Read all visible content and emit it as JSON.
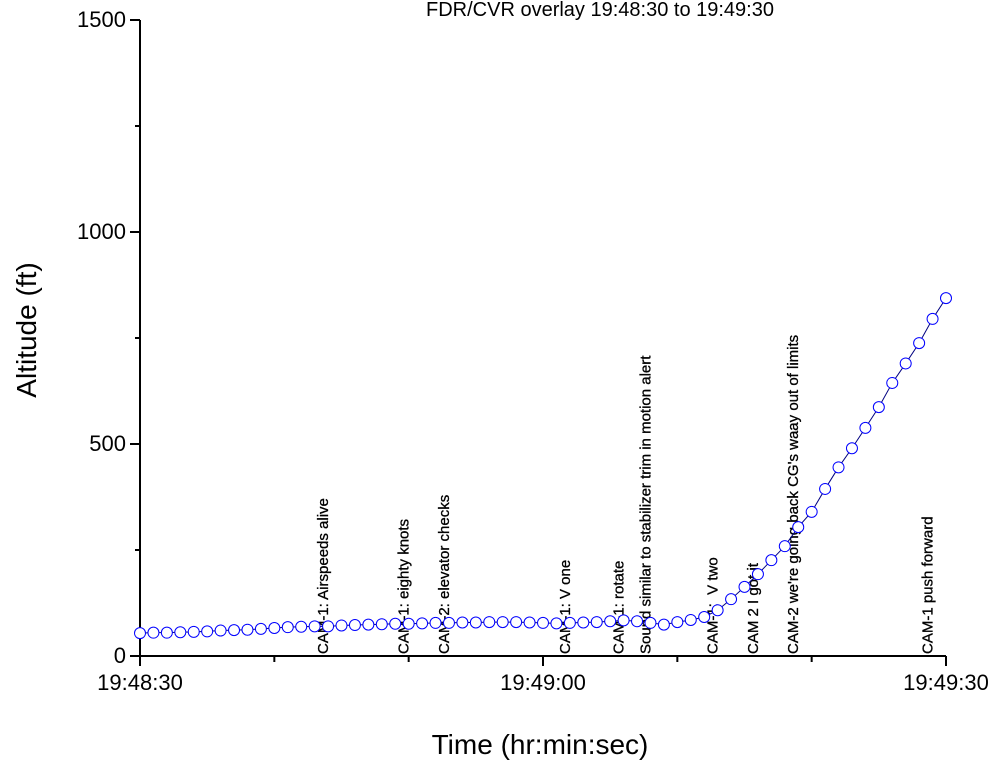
{
  "chart_data": {
    "type": "scatter",
    "title": "FDR/CVR overlay 19:48:30 to 19:49:30",
    "xlabel": "Time (hr:min:sec)",
    "ylabel": "Altitude (ft)",
    "xlim": [
      "19:48:30",
      "19:49:30"
    ],
    "xticks": [
      "19:48:30",
      "19:49:00",
      "19:49:30"
    ],
    "xminorticks": [
      "19:48:40",
      "19:48:50",
      "19:49:10",
      "19:49:20"
    ],
    "ylim": [
      0,
      1500
    ],
    "yticks": [
      0,
      500,
      1000,
      1500
    ],
    "yminorticks": [
      250,
      750,
      1250
    ],
    "x": [
      "19:48:30",
      "19:48:31",
      "19:48:32",
      "19:48:33",
      "19:48:34",
      "19:48:35",
      "19:48:36",
      "19:48:37",
      "19:48:38",
      "19:48:39",
      "19:48:40",
      "19:48:41",
      "19:48:42",
      "19:48:43",
      "19:48:44",
      "19:48:45",
      "19:48:46",
      "19:48:47",
      "19:48:48",
      "19:48:49",
      "19:48:50",
      "19:48:51",
      "19:48:52",
      "19:48:53",
      "19:48:54",
      "19:48:55",
      "19:48:56",
      "19:48:57",
      "19:48:58",
      "19:48:59",
      "19:49:00",
      "19:49:01",
      "19:49:02",
      "19:49:03",
      "19:49:04",
      "19:49:05",
      "19:49:06",
      "19:49:07",
      "19:49:08",
      "19:49:09",
      "19:49:10",
      "19:49:11",
      "19:49:12",
      "19:49:13",
      "19:49:14",
      "19:49:15",
      "19:49:16",
      "19:49:17",
      "19:49:18",
      "19:49:19",
      "19:49:20",
      "19:49:21",
      "19:49:22",
      "19:49:23",
      "19:49:24",
      "19:49:25",
      "19:49:26",
      "19:49:27",
      "19:49:28",
      "19:49:29",
      "19:49:30"
    ],
    "series": [
      {
        "name": "Altitude",
        "color": "#0000ff",
        "values": [
          54,
          55,
          55,
          56,
          57,
          58,
          60,
          61,
          62,
          64,
          66,
          68,
          69,
          70,
          70,
          72,
          73,
          74,
          75,
          76,
          76,
          77,
          78,
          78,
          79,
          79,
          80,
          80,
          80,
          79,
          78,
          77,
          78,
          79,
          80,
          82,
          84,
          82,
          78,
          74,
          80,
          85,
          92,
          108,
          134,
          163,
          193,
          226,
          259,
          304,
          340,
          394,
          445,
          490,
          538,
          587,
          644,
          690,
          738,
          795,
          844
        ]
      }
    ],
    "annotations": [
      {
        "x": "19:48:44",
        "text": "CAM-1: Airspeeds alive"
      },
      {
        "x": "19:48:50",
        "text": "CAM-1: eighty knots"
      },
      {
        "x": "19:48:53",
        "text": "CAM-2: elevator checks"
      },
      {
        "x": "19:49:02",
        "text": "CAM-1: V one"
      },
      {
        "x": "19:49:06",
        "text": "CAM-1: rotate"
      },
      {
        "x": "19:49:08",
        "text": "Sound similar to stabilizer trim in motion alert"
      },
      {
        "x": "19:49:13",
        "text": "CAM-1:  V two"
      },
      {
        "x": "19:49:16",
        "text": "CAM 2 I got it"
      },
      {
        "x": "19:49:19",
        "text": "CAM-2 we're going back CG's waay out of limits"
      },
      {
        "x": "19:49:29",
        "text": "CAM-1 push forward"
      }
    ]
  }
}
